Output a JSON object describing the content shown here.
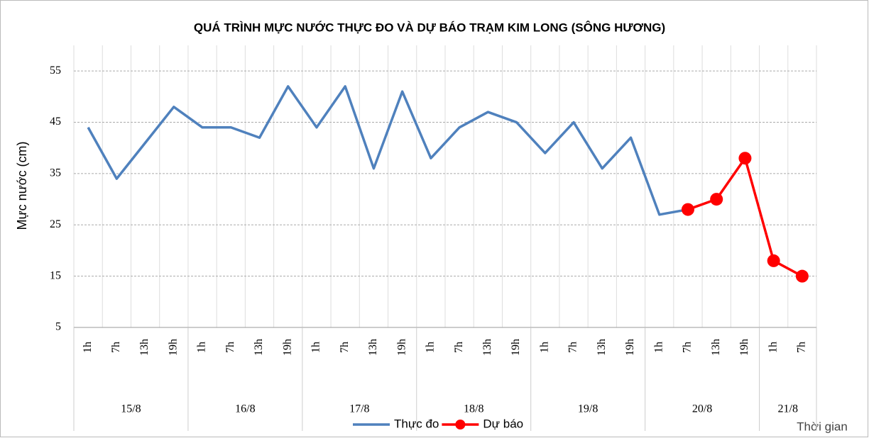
{
  "chart_data": {
    "type": "line",
    "title": "QUÁ TRÌNH MỰC NƯỚC THỰC ĐO VÀ DỰ BÁO TRẠM KIM LONG (SÔNG HƯƠNG)",
    "ylabel": "Mực nước (cm)",
    "xlabel": "Thời gian",
    "groups": [
      {
        "label": "15/8",
        "categories": [
          "1h",
          "7h",
          "13h",
          "19h"
        ]
      },
      {
        "label": "16/8",
        "categories": [
          "1h",
          "7h",
          "13h",
          "19h"
        ]
      },
      {
        "label": "17/8",
        "categories": [
          "1h",
          "7h",
          "13h",
          "19h"
        ]
      },
      {
        "label": "18/8",
        "categories": [
          "1h",
          "7h",
          "13h",
          "19h"
        ]
      },
      {
        "label": "19/8",
        "categories": [
          "1h",
          "7h",
          "13h",
          "19h"
        ]
      },
      {
        "label": "20/8",
        "categories": [
          "1h",
          "7h",
          "13h",
          "19h"
        ]
      },
      {
        "label": "21/8",
        "categories": [
          "1h",
          "7h"
        ]
      }
    ],
    "series": [
      {
        "name": "Thực đo",
        "color": "#4f81bd",
        "marker": false,
        "values": [
          44,
          34,
          41,
          48,
          44,
          44,
          42,
          52,
          44,
          52,
          36,
          51,
          38,
          44,
          47,
          45,
          39,
          45,
          36,
          42,
          27,
          28,
          null,
          null,
          null,
          null
        ]
      },
      {
        "name": "Dự báo",
        "color": "#ff0000",
        "marker": true,
        "values": [
          null,
          null,
          null,
          null,
          null,
          null,
          null,
          null,
          null,
          null,
          null,
          null,
          null,
          null,
          null,
          null,
          null,
          null,
          null,
          null,
          null,
          28,
          30,
          38,
          18,
          15
        ]
      }
    ],
    "ylim": [
      5,
      60
    ],
    "yticks": [
      5,
      15,
      25,
      35,
      45,
      55
    ],
    "grid": true
  }
}
